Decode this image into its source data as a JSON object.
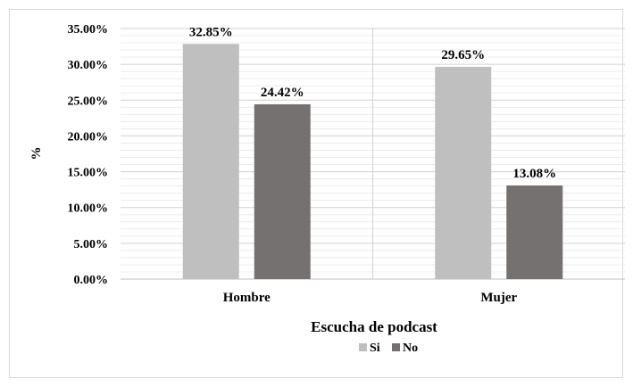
{
  "chart_data": {
    "type": "bar",
    "categories": [
      "Hombre",
      "Mujer"
    ],
    "series": [
      {
        "name": "Si",
        "values": [
          32.85,
          29.65
        ],
        "color": "#bfbfbf"
      },
      {
        "name": "No",
        "values": [
          24.42,
          13.08
        ],
        "color": "#767171"
      }
    ],
    "value_labels": [
      [
        "32.85%",
        "29.65%"
      ],
      [
        "24.42%",
        "13.08%"
      ]
    ],
    "xlabel": "Escucha de podcast",
    "ylabel": "%",
    "ylim": [
      0,
      35
    ],
    "yticks": [
      0,
      5,
      10,
      15,
      20,
      25,
      30,
      35
    ],
    "ytick_labels": [
      "0.00%",
      "5.00%",
      "10.00%",
      "15.00%",
      "20.00%",
      "25.00%",
      "30.00%",
      "35.00%"
    ],
    "grid": true,
    "legend_position": "bottom"
  }
}
